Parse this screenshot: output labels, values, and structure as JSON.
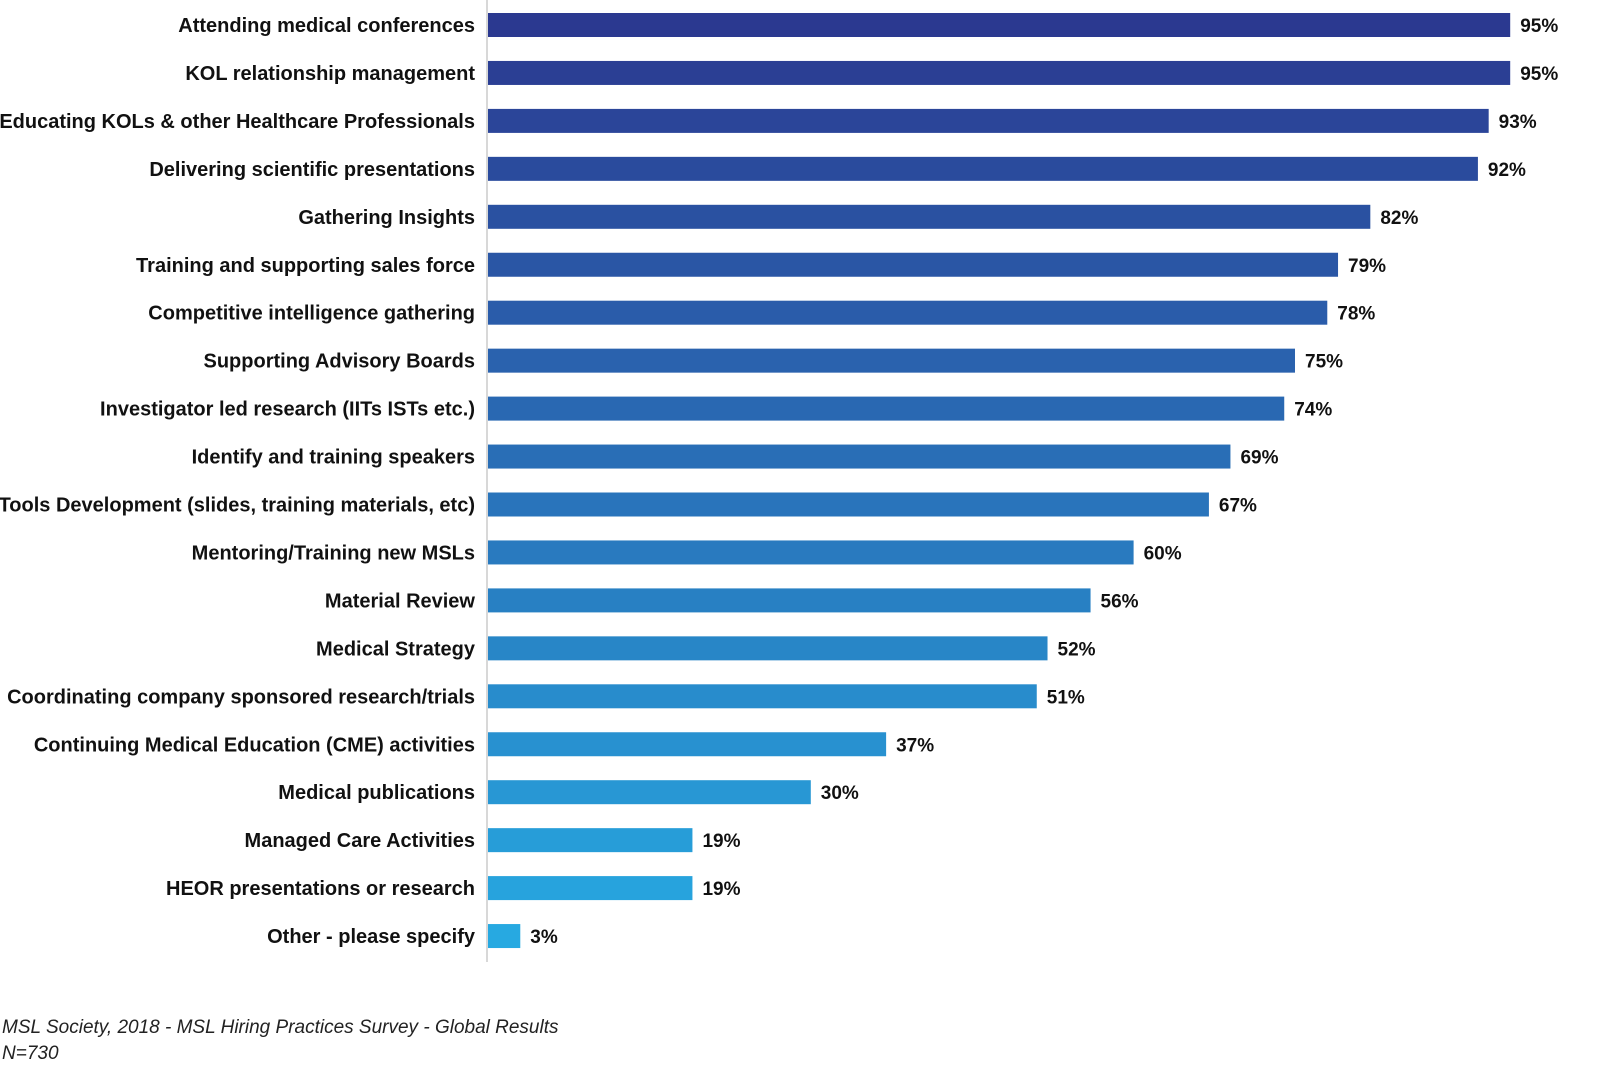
{
  "chart_data": {
    "type": "bar",
    "orientation": "horizontal",
    "title": "",
    "xlabel": "",
    "ylabel": "",
    "xlim": [
      0,
      100
    ],
    "grid": false,
    "value_suffix": "%",
    "categories": [
      "Attending medical conferences",
      "KOL relationship management",
      "Educating KOLs & other Healthcare Professionals",
      "Delivering scientific presentations",
      "Gathering Insights",
      "Training and supporting sales force",
      "Competitive intelligence gathering",
      "Supporting Advisory Boards",
      "Investigator led research (IITs ISTs etc.)",
      "Identify and training speakers",
      "Tools Development (slides, training materials, etc)",
      "Mentoring/Training new MSLs",
      "Material Review",
      "Medical Strategy",
      "Coordinating company sponsored research/trials",
      "Continuing Medical Education (CME) activities",
      "Medical publications",
      "Managed Care Activities",
      "HEOR presentations or research",
      "Other - please specify"
    ],
    "values": [
      95,
      95,
      93,
      92,
      82,
      79,
      78,
      75,
      74,
      69,
      67,
      60,
      56,
      52,
      51,
      37,
      30,
      19,
      19,
      3
    ],
    "colors": {
      "start": "#2b3990",
      "end": "#27a9e1",
      "axis": "#cccccc"
    }
  },
  "footer": {
    "source": "MSL Society, 2018 - MSL Hiring Practices Survey - Global Results",
    "n": "N=730"
  }
}
